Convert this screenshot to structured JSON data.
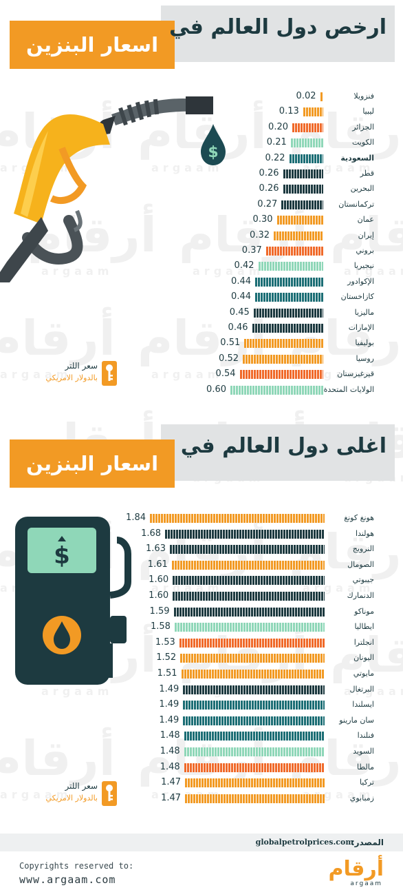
{
  "watermark": {
    "ar": "أرقام",
    "en": "argaam"
  },
  "sections": [
    {
      "title_line1": "ارخص دول العالم في",
      "title_line2": "اسعار البنزين",
      "legend_line1": "سعر اللتر",
      "legend_line2": "بالدولار الامريكي"
    },
    {
      "title_line1": "اغلى دول العالم في",
      "title_line2": "اسعار البنزين",
      "legend_line1": "سعر اللتر",
      "legend_line2": "بالدولار الامريكي"
    }
  ],
  "chart_data": [
    {
      "type": "bar",
      "orientation": "horizontal",
      "title": "ارخص دول العالم في اسعار البنزين",
      "unit": "سعر اللتر بالدولار الامريكي",
      "categories": [
        "فنزويلا",
        "ليبيا",
        "الجزائر",
        "الكويت",
        "السعودية",
        "قطر",
        "البحرين",
        "تركمانستان",
        "عمان",
        "إيران",
        "بروني",
        "نيجيريا",
        "الإكوادور",
        "كازاخستان",
        "ماليزيا",
        "الإمارات",
        "بوليفيا",
        "روسيا",
        "قيرغيزستان",
        "الولايات المتحدة"
      ],
      "values": [
        0.02,
        0.13,
        0.2,
        0.21,
        0.22,
        0.26,
        0.26,
        0.27,
        0.3,
        0.32,
        0.37,
        0.42,
        0.44,
        0.44,
        0.45,
        0.46,
        0.51,
        0.52,
        0.54,
        0.6
      ],
      "value_labels": [
        "0.02",
        "0.13",
        "0.20",
        "0.21",
        "0.22",
        "0.26",
        "0.26",
        "0.27",
        "0.30",
        "0.32",
        "0.37",
        "0.42",
        "0.44",
        "0.44",
        "0.45",
        "0.46",
        "0.51",
        "0.52",
        "0.54",
        "0.60"
      ],
      "colors": [
        "#f29a24",
        "#f29a24",
        "#f06a2a",
        "#8fd7b8",
        "#1c6e75",
        "#1d3a40",
        "#1d3a40",
        "#1d3a40",
        "#f29a24",
        "#f29a24",
        "#f06a2a",
        "#8fd7b8",
        "#1c6e75",
        "#1c6e75",
        "#1d3a40",
        "#1d3a40",
        "#f29a24",
        "#f29a24",
        "#f06a2a",
        "#8fd7b8"
      ],
      "highlight": "السعودية",
      "xlim": [
        0,
        0.6
      ]
    },
    {
      "type": "bar",
      "orientation": "horizontal",
      "title": "اغلى دول العالم في اسعار البنزين",
      "unit": "سعر اللتر بالدولار الامريكي",
      "categories": [
        "هونغ كونغ",
        "هولندا",
        "النرويج",
        "الصومال",
        "جيبوتي",
        "الدنمارك",
        "موناكو",
        "ايطاليا",
        "انجلترا",
        "اليونان",
        "مايوتي",
        "البرتغال",
        "ايسلندا",
        "سان مارينو",
        "فنلندا",
        "السويد",
        "مالطا",
        "تركيا",
        "زمبابوي"
      ],
      "values": [
        1.84,
        1.68,
        1.63,
        1.61,
        1.6,
        1.6,
        1.59,
        1.58,
        1.53,
        1.52,
        1.51,
        1.49,
        1.49,
        1.49,
        1.48,
        1.48,
        1.48,
        1.47,
        1.47
      ],
      "value_labels": [
        "1.84",
        "1.68",
        "1.63",
        "1.61",
        "1.60",
        "1.60",
        "1.59",
        "1.58",
        "1.53",
        "1.52",
        "1.51",
        "1.49",
        "1.49",
        "1.49",
        "1.48",
        "1.48",
        "1.48",
        "1.47",
        "1.47"
      ],
      "colors": [
        "#f29a24",
        "#1d3a40",
        "#1d3a40",
        "#f29a24",
        "#1d3a40",
        "#1d3a40",
        "#1d3a40",
        "#8fd7b8",
        "#f06a2a",
        "#f29a24",
        "#f29a24",
        "#1d3a40",
        "#1c6e75",
        "#1c6e75",
        "#1c6e75",
        "#8fd7b8",
        "#f06a2a",
        "#f29a24",
        "#f29a24"
      ],
      "xlim": [
        0,
        1.84
      ]
    }
  ],
  "source": {
    "label": "المصدر:",
    "value": "globalpetrolprices.com"
  },
  "footer": {
    "copyright": "Copyrights reserved to:",
    "url": "www.argaam.com",
    "logo_ar": "أرقام",
    "logo_en": "argaam"
  },
  "icons": [
    "fuel-nozzle-icon",
    "dollar-drop-icon",
    "fuel-pump-icon",
    "key-icon"
  ],
  "colors": {
    "accent": "#f29a24",
    "dark": "#1d3a40",
    "teal": "#1c6e75",
    "mint": "#8fd7b8",
    "red_orange": "#f06a2a"
  }
}
